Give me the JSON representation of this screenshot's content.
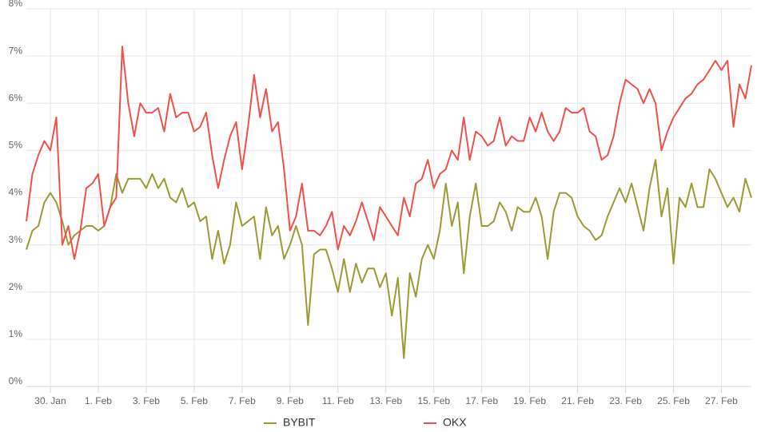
{
  "chart_data": {
    "type": "line",
    "categories": [
      null,
      null,
      null,
      null,
      "30. Jan",
      null,
      null,
      null,
      null,
      null,
      null,
      null,
      "1. Feb",
      null,
      null,
      null,
      null,
      null,
      null,
      null,
      "3. Feb",
      null,
      null,
      null,
      null,
      null,
      null,
      null,
      "5. Feb",
      null,
      null,
      null,
      null,
      null,
      null,
      null,
      "7. Feb",
      null,
      null,
      null,
      null,
      null,
      null,
      null,
      "9. Feb",
      null,
      null,
      null,
      null,
      null,
      null,
      null,
      "11. Feb",
      null,
      null,
      null,
      null,
      null,
      null,
      null,
      "13. Feb",
      null,
      null,
      null,
      null,
      null,
      null,
      null,
      "15. Feb",
      null,
      null,
      null,
      null,
      null,
      null,
      null,
      "17. Feb",
      null,
      null,
      null,
      null,
      null,
      null,
      null,
      "19. Feb",
      null,
      null,
      null,
      null,
      null,
      null,
      null,
      "21. Feb",
      null,
      null,
      null,
      null,
      null,
      null,
      null,
      "23. Feb",
      null,
      null,
      null,
      null,
      null,
      null,
      null,
      "25. Feb",
      null,
      null,
      null,
      null,
      null,
      null,
      null,
      "27. Feb",
      null,
      null,
      null,
      null,
      null
    ],
    "series": [
      {
        "name": "BYBIT",
        "color": "#9c9a34",
        "values": [
          2.9,
          3.3,
          3.4,
          3.9,
          4.1,
          3.9,
          3.5,
          3.0,
          3.2,
          3.3,
          3.4,
          3.4,
          3.3,
          3.4,
          3.8,
          4.5,
          4.1,
          4.4,
          4.4,
          4.4,
          4.2,
          4.5,
          4.2,
          4.4,
          4.0,
          3.9,
          4.2,
          3.8,
          3.9,
          3.5,
          3.6,
          2.7,
          3.3,
          2.6,
          3.0,
          3.9,
          3.4,
          3.5,
          3.6,
          2.7,
          3.8,
          3.2,
          3.4,
          2.7,
          3.0,
          3.4,
          3.0,
          1.3,
          2.8,
          2.9,
          2.9,
          2.5,
          2.0,
          2.7,
          2.0,
          2.6,
          2.2,
          2.5,
          2.5,
          2.1,
          2.4,
          1.5,
          2.3,
          0.6,
          2.4,
          1.9,
          2.7,
          3.0,
          2.7,
          3.3,
          4.3,
          3.4,
          3.9,
          2.4,
          3.6,
          4.3,
          3.4,
          3.4,
          3.5,
          3.9,
          3.7,
          3.3,
          3.8,
          3.7,
          3.7,
          4.0,
          3.6,
          2.7,
          3.7,
          4.1,
          4.1,
          4.0,
          3.6,
          3.4,
          3.3,
          3.1,
          3.2,
          3.6,
          3.9,
          4.2,
          3.9,
          4.3,
          3.8,
          3.3,
          4.2,
          4.8,
          3.6,
          4.2,
          2.6,
          4.0,
          3.8,
          4.3,
          3.8,
          3.8,
          4.6,
          4.4,
          4.1,
          3.8,
          4.0,
          3.7,
          4.4,
          4.0
        ]
      },
      {
        "name": "OKX",
        "color": "#f0514a",
        "values": [
          3.5,
          4.5,
          4.9,
          5.2,
          5.0,
          5.7,
          3.0,
          3.4,
          2.7,
          3.3,
          4.2,
          4.3,
          4.5,
          3.4,
          3.8,
          4.0,
          7.2,
          6.0,
          5.3,
          6.0,
          5.8,
          5.8,
          5.9,
          5.4,
          6.2,
          5.7,
          5.8,
          5.8,
          5.4,
          5.5,
          5.8,
          4.9,
          4.2,
          4.8,
          5.3,
          5.6,
          4.6,
          5.5,
          6.6,
          5.7,
          6.3,
          5.4,
          5.6,
          4.6,
          3.3,
          3.6,
          4.3,
          3.3,
          3.3,
          3.2,
          3.4,
          3.7,
          2.9,
          3.4,
          3.2,
          3.5,
          3.9,
          3.5,
          3.1,
          3.8,
          3.6,
          3.4,
          3.2,
          4.0,
          3.6,
          4.3,
          4.4,
          4.8,
          4.2,
          4.5,
          4.6,
          5.0,
          4.8,
          5.7,
          4.8,
          5.4,
          5.3,
          5.1,
          5.2,
          5.7,
          5.1,
          5.3,
          5.2,
          5.2,
          5.7,
          5.4,
          5.8,
          5.4,
          5.2,
          5.4,
          5.9,
          5.8,
          5.8,
          5.9,
          5.4,
          5.3,
          4.8,
          4.9,
          5.3,
          6.0,
          6.5,
          6.4,
          6.3,
          6.0,
          6.3,
          6.0,
          5.0,
          5.4,
          5.7,
          5.9,
          6.1,
          6.2,
          6.4,
          6.5,
          6.7,
          6.9,
          6.7,
          6.9,
          5.5,
          6.4,
          6.1,
          6.8
        ]
      }
    ],
    "ylim": [
      0,
      8
    ],
    "yticks": [
      {
        "value": 0,
        "label": "0%"
      },
      {
        "value": 1,
        "label": "1%"
      },
      {
        "value": 2,
        "label": "2%"
      },
      {
        "value": 3,
        "label": "3%"
      },
      {
        "value": 4,
        "label": "4%"
      },
      {
        "value": 5,
        "label": "5%"
      },
      {
        "value": 6,
        "label": "6%"
      },
      {
        "value": 7,
        "label": "7%"
      },
      {
        "value": 8,
        "label": "8%"
      }
    ],
    "grid": true,
    "legend": "bottom"
  }
}
